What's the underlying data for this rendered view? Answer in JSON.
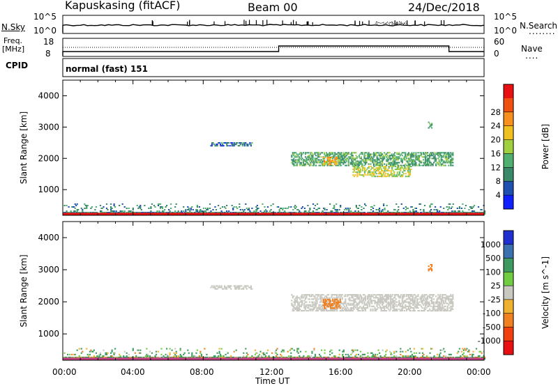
{
  "header": {
    "station": "Kapuskasing (fitACF)",
    "beam": "Beam 00",
    "date": "24/Dec/2018"
  },
  "nsky_panel": {
    "left_label": "N.Sky",
    "right_label": "N.Search",
    "right_dots": "........",
    "left_ticks": [
      "10^5",
      "10^0"
    ],
    "right_ticks": [
      "10^5",
      "10^0"
    ]
  },
  "freq_panel": {
    "left_label_line1": "Freq.",
    "left_label_line2": "[MHz]",
    "right_label": "Nave",
    "right_dots": "....",
    "left_ticks": [
      "18",
      "8"
    ],
    "right_ticks": [
      "60",
      "0"
    ]
  },
  "cpid": {
    "label": "CPID",
    "mode_text": "normal (fast) 151"
  },
  "time_axis": {
    "xlabel": "Time UT",
    "ticks": [
      "00:00",
      "04:00",
      "08:00",
      "12:00",
      "16:00",
      "20:00",
      "00:00"
    ]
  },
  "chart_data": [
    {
      "type": "heatmap",
      "title": "",
      "xlabel": "Time UT",
      "ylabel": "Slant Range [km]",
      "x_units": "hours UT",
      "xlim": [
        0,
        24
      ],
      "ylim": [
        180,
        4500
      ],
      "yticks": [
        1000,
        2000,
        3000,
        4000
      ],
      "colorbar": {
        "label": "Power [dB]",
        "ticks": [
          "4",
          "8",
          "12",
          "16",
          "20",
          "24",
          "28"
        ],
        "colors": [
          "#1020ff",
          "#2050b0",
          "#3a8a6a",
          "#50b070",
          "#a0cf40",
          "#f0c020",
          "#f89020",
          "#f05010",
          "#e81010"
        ]
      },
      "regions": [
        {
          "t0": 0.0,
          "t1": 24.0,
          "r0": 200,
          "r1": 560,
          "value": 10
        },
        {
          "t0": 8.4,
          "t1": 10.8,
          "r0": 2380,
          "r1": 2480,
          "value": 8
        },
        {
          "t0": 13.0,
          "t1": 22.2,
          "r0": 1750,
          "r1": 2200,
          "value": 13
        },
        {
          "t0": 14.8,
          "t1": 15.6,
          "r0": 1780,
          "r1": 2020,
          "value": 24
        },
        {
          "t0": 16.5,
          "t1": 19.8,
          "r0": 1400,
          "r1": 1750,
          "value": 19
        },
        {
          "t0": 20.8,
          "t1": 21.0,
          "r0": 2950,
          "r1": 3150,
          "value": 12
        }
      ]
    },
    {
      "type": "heatmap",
      "title": "",
      "xlabel": "Time UT",
      "ylabel": "Slant Range [km]",
      "x_units": "hours UT",
      "xlim": [
        0,
        24
      ],
      "ylim": [
        180,
        4500
      ],
      "yticks": [
        1000,
        2000,
        3000,
        4000
      ],
      "colorbar": {
        "label": "Velocity [m s^-1]",
        "ticks": [
          "1000",
          "500",
          "100",
          "25",
          "-25",
          "-100",
          "-500",
          "-1000"
        ],
        "colors": [
          "#2030d0",
          "#3a70b0",
          "#3e9a60",
          "#70cc40",
          "#c8c8c0",
          "#f0b030",
          "#f08020",
          "#f04010",
          "#e81010"
        ]
      },
      "regions": [
        {
          "t0": 0.0,
          "t1": 24.0,
          "r0": 200,
          "r1": 560,
          "value": 150
        },
        {
          "t0": 8.4,
          "t1": 10.8,
          "r0": 2380,
          "r1": 2480,
          "value": 0
        },
        {
          "t0": 13.0,
          "t1": 22.2,
          "r0": 1700,
          "r1": 2200,
          "value": 0
        },
        {
          "t0": 14.8,
          "t1": 15.8,
          "r0": 1780,
          "r1": 2080,
          "value": -150
        },
        {
          "t0": 20.8,
          "t1": 21.0,
          "r0": 2950,
          "r1": 3150,
          "value": -150
        }
      ]
    }
  ]
}
